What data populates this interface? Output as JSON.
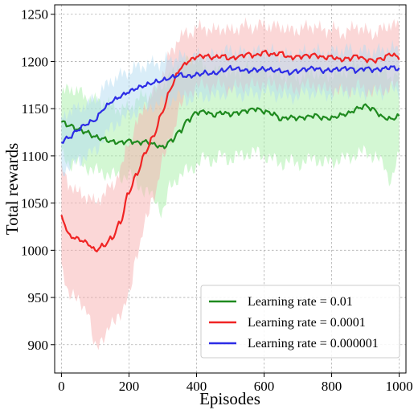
{
  "chart_data": {
    "type": "line",
    "xlabel": "Episodes",
    "ylabel": "Total rewards",
    "xlim": [
      -20,
      1020
    ],
    "ylim": [
      870,
      1260
    ],
    "xticks": [
      0,
      200,
      400,
      600,
      800,
      1000
    ],
    "yticks": [
      900,
      950,
      1000,
      1050,
      1100,
      1150,
      1200,
      1250
    ],
    "grid": true,
    "legend_position": "lower-right",
    "series": [
      {
        "name": "Learning rate = 0.01",
        "color": "#1f8a1f",
        "band_color": "#a8f0a8",
        "x": [
          0,
          25,
          50,
          75,
          100,
          125,
          150,
          175,
          200,
          225,
          250,
          275,
          300,
          325,
          350,
          375,
          400,
          425,
          450,
          475,
          500,
          525,
          550,
          575,
          600,
          625,
          650,
          675,
          700,
          725,
          750,
          775,
          800,
          825,
          850,
          875,
          900,
          925,
          950,
          975,
          1000
        ],
        "smooth": [
          1136,
          1132,
          1128,
          1125,
          1120,
          1118,
          1115,
          1114,
          1116,
          1114,
          1115,
          1112,
          1109,
          1116,
          1126,
          1138,
          1146,
          1147,
          1143,
          1146,
          1144,
          1146,
          1148,
          1150,
          1147,
          1145,
          1139,
          1141,
          1140,
          1141,
          1143,
          1140,
          1140,
          1143,
          1145,
          1150,
          1153,
          1149,
          1141,
          1139,
          1142
        ],
        "upper": [
          1165,
          1172,
          1168,
          1162,
          1158,
          1158,
          1152,
          1150,
          1150,
          1160,
          1164,
          1168,
          1176,
          1185,
          1196,
          1200,
          1204,
          1192,
          1188,
          1192,
          1186,
          1190,
          1192,
          1194,
          1190,
          1186,
          1184,
          1186,
          1182,
          1186,
          1188,
          1184,
          1186,
          1188,
          1190,
          1196,
          1198,
          1193,
          1188,
          1184,
          1186
        ],
        "lower": [
          1100,
          1092,
          1094,
          1088,
          1084,
          1082,
          1080,
          1078,
          1080,
          1070,
          1062,
          1055,
          1040,
          1070,
          1078,
          1085,
          1090,
          1098,
          1095,
          1100,
          1096,
          1100,
          1102,
          1104,
          1100,
          1096,
          1092,
          1094,
          1092,
          1094,
          1098,
          1092,
          1094,
          1096,
          1098,
          1102,
          1104,
          1100,
          1092,
          1075,
          1098
        ]
      },
      {
        "name": "Learning rate = 0.0001",
        "color": "#f02424",
        "band_color": "#f7b0b0",
        "x": [
          0,
          25,
          50,
          75,
          100,
          125,
          150,
          175,
          200,
          225,
          250,
          275,
          300,
          325,
          350,
          375,
          400,
          425,
          450,
          475,
          500,
          525,
          550,
          575,
          600,
          625,
          650,
          675,
          700,
          725,
          750,
          775,
          800,
          825,
          850,
          875,
          900,
          925,
          950,
          975,
          1000
        ],
        "smooth": [
          1035,
          1015,
          1012,
          1008,
          1000,
          1005,
          1013,
          1030,
          1062,
          1082,
          1105,
          1123,
          1148,
          1173,
          1192,
          1200,
          1205,
          1206,
          1204,
          1206,
          1203,
          1205,
          1208,
          1206,
          1210,
          1207,
          1209,
          1204,
          1205,
          1206,
          1207,
          1204,
          1205,
          1202,
          1203,
          1206,
          1202,
          1201,
          1203,
          1208,
          1204
        ],
        "upper": [
          1085,
          1070,
          1060,
          1058,
          1050,
          1060,
          1068,
          1085,
          1115,
          1135,
          1155,
          1168,
          1188,
          1210,
          1226,
          1230,
          1235,
          1236,
          1232,
          1236,
          1232,
          1236,
          1238,
          1236,
          1240,
          1236,
          1238,
          1232,
          1234,
          1236,
          1238,
          1232,
          1236,
          1230,
          1232,
          1238,
          1232,
          1230,
          1234,
          1240,
          1236
        ],
        "lower": [
          980,
          955,
          945,
          940,
          895,
          910,
          920,
          935,
          950,
          1000,
          1030,
          1060,
          1095,
          1120,
          1150,
          1168,
          1172,
          1176,
          1172,
          1176,
          1170,
          1174,
          1176,
          1174,
          1178,
          1174,
          1176,
          1170,
          1172,
          1174,
          1176,
          1170,
          1172,
          1168,
          1170,
          1174,
          1170,
          1168,
          1170,
          1174,
          1172
        ]
      },
      {
        "name": "Learning rate = 0.000001",
        "color": "#2c2ce6",
        "band_color": "#b3dcf2",
        "x": [
          0,
          25,
          50,
          75,
          100,
          125,
          150,
          175,
          200,
          225,
          250,
          275,
          300,
          325,
          350,
          375,
          400,
          425,
          450,
          475,
          500,
          525,
          550,
          575,
          600,
          625,
          650,
          675,
          700,
          725,
          750,
          775,
          800,
          825,
          850,
          875,
          900,
          925,
          950,
          975,
          1000
        ],
        "smooth": [
          1115,
          1120,
          1128,
          1134,
          1138,
          1150,
          1158,
          1163,
          1168,
          1172,
          1175,
          1178,
          1180,
          1183,
          1186,
          1184,
          1186,
          1188,
          1187,
          1190,
          1193,
          1192,
          1190,
          1191,
          1192,
          1191,
          1190,
          1188,
          1190,
          1192,
          1193,
          1190,
          1191,
          1192,
          1193,
          1190,
          1193,
          1191,
          1192,
          1194,
          1192
        ],
        "upper": [
          1140,
          1148,
          1150,
          1155,
          1160,
          1172,
          1180,
          1185,
          1190,
          1194,
          1196,
          1198,
          1200,
          1202,
          1205,
          1202,
          1206,
          1208,
          1206,
          1210,
          1212,
          1210,
          1208,
          1210,
          1212,
          1210,
          1208,
          1206,
          1208,
          1210,
          1212,
          1208,
          1210,
          1212,
          1213,
          1208,
          1212,
          1210,
          1212,
          1214,
          1212
        ],
        "lower": [
          1085,
          1088,
          1095,
          1100,
          1105,
          1120,
          1130,
          1138,
          1142,
          1148,
          1150,
          1154,
          1156,
          1160,
          1162,
          1160,
          1162,
          1164,
          1162,
          1166,
          1168,
          1166,
          1164,
          1166,
          1168,
          1166,
          1164,
          1162,
          1164,
          1166,
          1168,
          1164,
          1166,
          1168,
          1169,
          1164,
          1168,
          1166,
          1168,
          1170,
          1168
        ]
      }
    ]
  }
}
